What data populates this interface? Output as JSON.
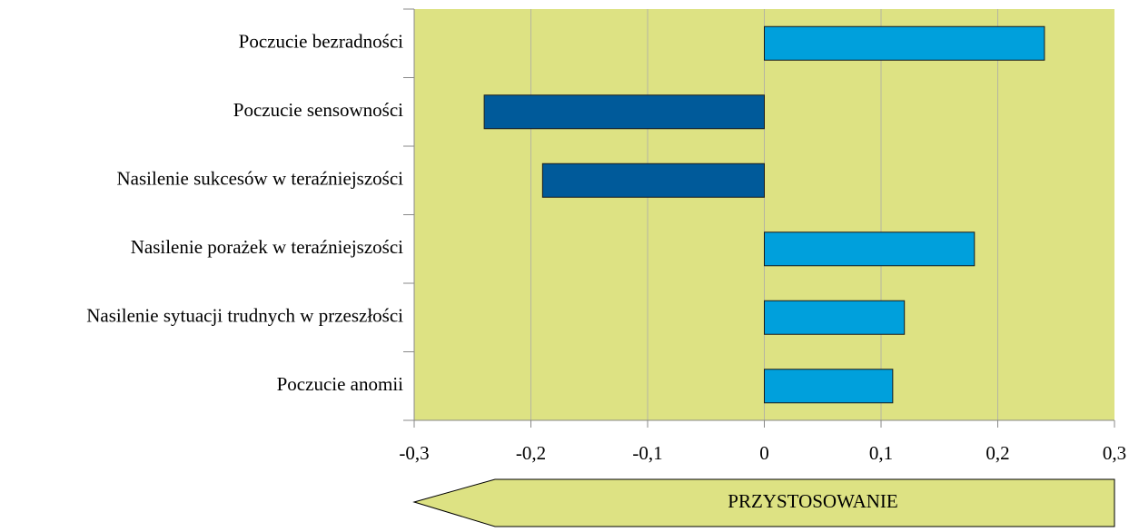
{
  "chart_data": {
    "type": "barh",
    "categories": [
      "Poczucie bezradności",
      "Poczucie sensowności",
      "Nasilenie sukcesów w teraźniejszości",
      "Nasilenie porażek w teraźniejszości",
      "Nasilenie sytuacji trudnych w przeszłości",
      "Poczucie anomii"
    ],
    "values": [
      0.24,
      -0.24,
      -0.19,
      0.18,
      0.12,
      0.11
    ],
    "colors": [
      "#00a0dc",
      "#005a9a",
      "#005a9a",
      "#00a0dc",
      "#00a0dc",
      "#00a0dc"
    ],
    "xlim": [
      -0.3,
      0.3
    ],
    "xticks": [
      {
        "value": -0.3,
        "label": "-0,3"
      },
      {
        "value": -0.2,
        "label": "-0,2"
      },
      {
        "value": -0.1,
        "label": "-0,1"
      },
      0,
      {
        "value": 0.1,
        "label": "0,1"
      },
      {
        "value": 0.2,
        "label": "0,2"
      },
      {
        "value": 0.3,
        "label": "0,3"
      }
    ],
    "grid": true,
    "plot_background": "#dde283",
    "annotation": "PRZYSTOSOWANIE"
  }
}
